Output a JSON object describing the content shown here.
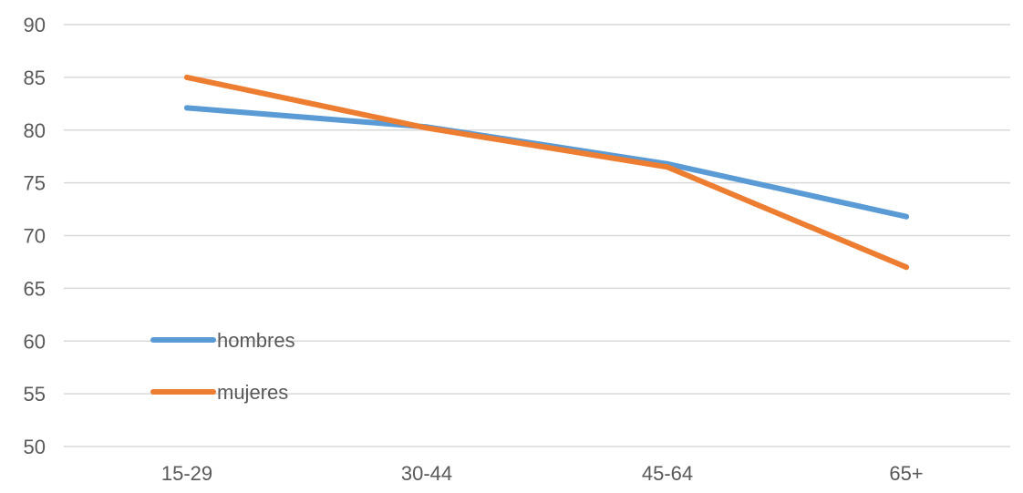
{
  "chart_data": {
    "type": "line",
    "title": "",
    "xlabel": "",
    "ylabel": "",
    "categories": [
      "15-29",
      "30-44",
      "45-64",
      "65+"
    ],
    "ylim": [
      50,
      90
    ],
    "yticks": [
      90,
      85,
      80,
      75,
      70,
      65,
      60,
      55,
      50
    ],
    "grid": true,
    "legend_position": "left",
    "series": [
      {
        "name": "hombres",
        "color": "#5b9bd5",
        "values": [
          82.1,
          80.3,
          76.8,
          71.8
        ]
      },
      {
        "name": "mujeres",
        "color": "#ed7d31",
        "values": [
          85.0,
          80.2,
          76.5,
          67.0
        ]
      }
    ]
  }
}
